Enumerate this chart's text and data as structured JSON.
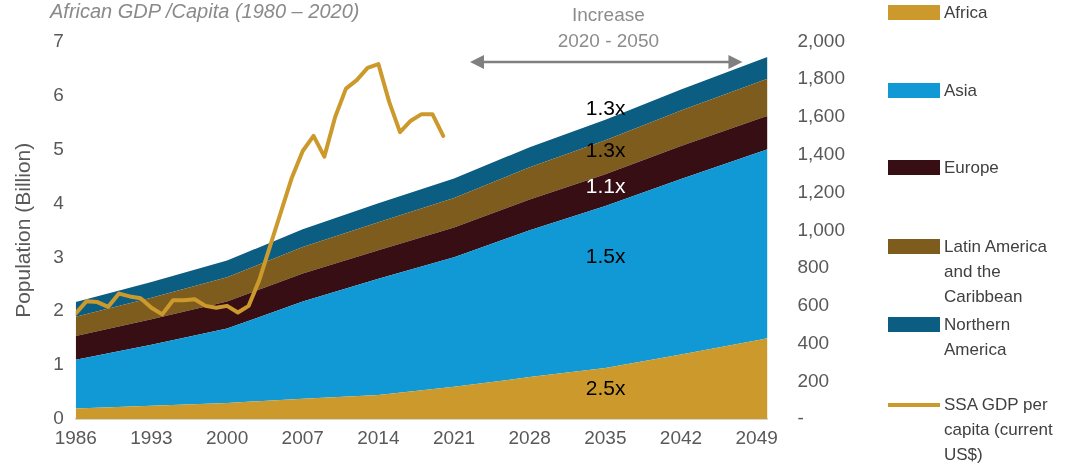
{
  "chart_data": {
    "type": "area",
    "title": "African GDP /Capita (1980 – 2020)",
    "ylabel": "Population (Billion)",
    "stacked": true,
    "x": [
      1986,
      1993,
      2000,
      2007,
      2014,
      2021,
      2028,
      2035,
      2042,
      2050
    ],
    "series": [
      {
        "name": "Africa",
        "color": "#cc9a2c",
        "values": [
          0.2,
          0.25,
          0.3,
          0.38,
          0.45,
          0.6,
          0.78,
          0.95,
          1.2,
          1.5
        ]
      },
      {
        "name": "Asia",
        "color": "#1199d6",
        "values": [
          0.9,
          1.13,
          1.38,
          1.8,
          2.15,
          2.4,
          2.72,
          3.0,
          3.25,
          3.5
        ]
      },
      {
        "name": "Europe",
        "color": "#360e14",
        "values": [
          0.44,
          0.47,
          0.5,
          0.52,
          0.53,
          0.55,
          0.57,
          0.59,
          0.61,
          0.62
        ]
      },
      {
        "name": "Latin America and the Caribbean",
        "color": "#7d5c1e",
        "values": [
          0.36,
          0.4,
          0.45,
          0.49,
          0.52,
          0.55,
          0.6,
          0.63,
          0.66,
          0.69
        ]
      },
      {
        "name": "Northern America",
        "color": "#0c5d82",
        "values": [
          0.27,
          0.29,
          0.31,
          0.33,
          0.35,
          0.36,
          0.37,
          0.38,
          0.39,
          0.4
        ]
      },
      {
        "name": "SSA GDP per capita (current US$)",
        "type": "line",
        "axis": "y2",
        "color": "#cc9a2c",
        "x": [
          1986,
          1987,
          1988,
          1989,
          1990,
          1991,
          1992,
          1993,
          1994,
          1995,
          1996,
          1997,
          1998,
          1999,
          2000,
          2001,
          2002,
          2003,
          2004,
          2005,
          2006,
          2007,
          2008,
          2009,
          2010,
          2011,
          2012,
          2013,
          2014,
          2015,
          2016,
          2017,
          2018,
          2019,
          2020
        ],
        "values": [
          560,
          625,
          620,
          595,
          665,
          650,
          640,
          590,
          555,
          630,
          630,
          635,
          600,
          590,
          600,
          565,
          600,
          740,
          920,
          1100,
          1280,
          1420,
          1500,
          1390,
          1600,
          1750,
          1795,
          1860,
          1880,
          1680,
          1520,
          1580,
          1615,
          1615,
          1500
        ]
      }
    ],
    "xlim": [
      1986,
      2050
    ],
    "xticks": [
      1986,
      1993,
      2000,
      2007,
      2014,
      2021,
      2028,
      2035,
      2042,
      2049
    ],
    "ylim": [
      0,
      7
    ],
    "yticks": [
      0,
      1,
      2,
      3,
      4,
      5,
      6,
      7
    ],
    "y2lim": [
      0,
      2000
    ],
    "y2ticks": [
      {
        "value": 0,
        "label": "-"
      },
      200,
      400,
      600,
      800,
      {
        "value": 1000,
        "label": "1,000"
      },
      {
        "value": 1200,
        "label": "1,200"
      },
      {
        "value": 1400,
        "label": "1,400"
      },
      {
        "value": 1600,
        "label": "1,600"
      },
      {
        "value": 1800,
        "label": "1,800"
      },
      {
        "value": 2000,
        "label": "2,000"
      }
    ],
    "grid": false,
    "legend": "right",
    "annotations": [
      "Increase 2020 - 2050",
      "1.3x",
      "1.3x",
      "1.1x",
      "1.5x",
      "2.5x"
    ]
  }
}
